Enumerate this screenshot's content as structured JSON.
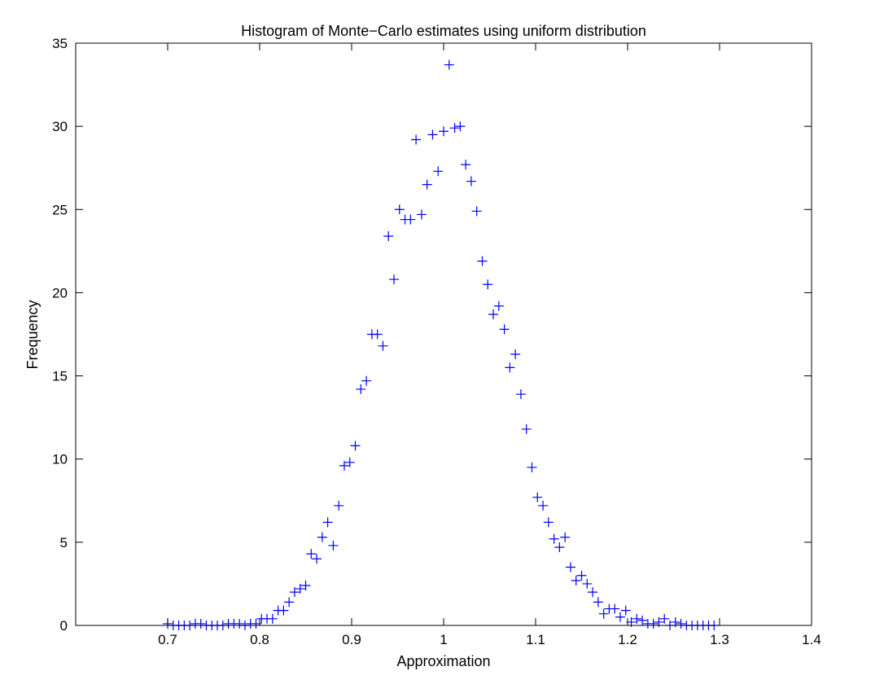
{
  "chart_data": {
    "type": "scatter",
    "title": "Histogram of Monte−Carlo estimates using uniform distribution",
    "xlabel": "Approximation",
    "ylabel": "Frequency",
    "xlim": [
      0.6,
      1.4
    ],
    "ylim": [
      0,
      35
    ],
    "xticks": [
      "0.7",
      "0.8",
      "0.9",
      "1",
      "1.1",
      "1.2",
      "1.3",
      "1.4"
    ],
    "yticks": [
      "0",
      "5",
      "10",
      "15",
      "20",
      "25",
      "30",
      "35"
    ],
    "marker": "plus",
    "grid": false,
    "legend": "none",
    "color": "#0000ff",
    "x": [
      0.7,
      0.706,
      0.712,
      0.718,
      0.724,
      0.73,
      0.736,
      0.742,
      0.748,
      0.754,
      0.76,
      0.766,
      0.772,
      0.778,
      0.784,
      0.79,
      0.796,
      0.802,
      0.808,
      0.814,
      0.82,
      0.826,
      0.832,
      0.838,
      0.844,
      0.85,
      0.856,
      0.862,
      0.868,
      0.874,
      0.88,
      0.886,
      0.892,
      0.898,
      0.904,
      0.91,
      0.916,
      0.922,
      0.928,
      0.934,
      0.94,
      0.946,
      0.952,
      0.958,
      0.964,
      0.97,
      0.976,
      0.982,
      0.988,
      0.994,
      1.0,
      1.006,
      1.012,
      1.018,
      1.024,
      1.03,
      1.036,
      1.042,
      1.048,
      1.054,
      1.06,
      1.066,
      1.072,
      1.078,
      1.084,
      1.09,
      1.096,
      1.102,
      1.108,
      1.114,
      1.12,
      1.126,
      1.132,
      1.138,
      1.144,
      1.15,
      1.156,
      1.162,
      1.168,
      1.174,
      1.18,
      1.186,
      1.192,
      1.198,
      1.204,
      1.21,
      1.216,
      1.222,
      1.228,
      1.234,
      1.24,
      1.246,
      1.252,
      1.258,
      1.264,
      1.27,
      1.276,
      1.282,
      1.288,
      1.294
    ],
    "y": [
      0.1,
      0.0,
      0.0,
      0.0,
      0.0,
      0.1,
      0.1,
      0.0,
      0.0,
      0.0,
      0.0,
      0.1,
      0.1,
      0.1,
      0.0,
      0.1,
      0.1,
      0.4,
      0.4,
      0.4,
      0.9,
      0.9,
      1.4,
      2.0,
      2.2,
      2.4,
      4.3,
      4.0,
      5.3,
      6.2,
      4.8,
      7.2,
      9.6,
      9.8,
      10.8,
      14.2,
      14.7,
      17.5,
      17.5,
      16.8,
      23.4,
      20.8,
      25.0,
      24.4,
      24.4,
      29.2,
      24.7,
      26.5,
      29.5,
      27.3,
      29.7,
      33.7,
      29.9,
      30.0,
      27.7,
      26.7,
      24.9,
      21.9,
      20.5,
      18.7,
      19.2,
      17.8,
      15.5,
      16.3,
      13.9,
      11.8,
      9.5,
      7.7,
      7.2,
      6.2,
      5.2,
      4.7,
      5.3,
      3.5,
      2.7,
      3.0,
      2.5,
      2.0,
      1.4,
      0.7,
      1.0,
      1.0,
      0.5,
      0.9,
      0.2,
      0.4,
      0.3,
      0.1,
      0.1,
      0.2,
      0.4,
      0.0,
      0.2,
      0.1,
      0.0,
      0.0,
      0.0,
      0.0,
      0.0,
      0.0
    ]
  }
}
